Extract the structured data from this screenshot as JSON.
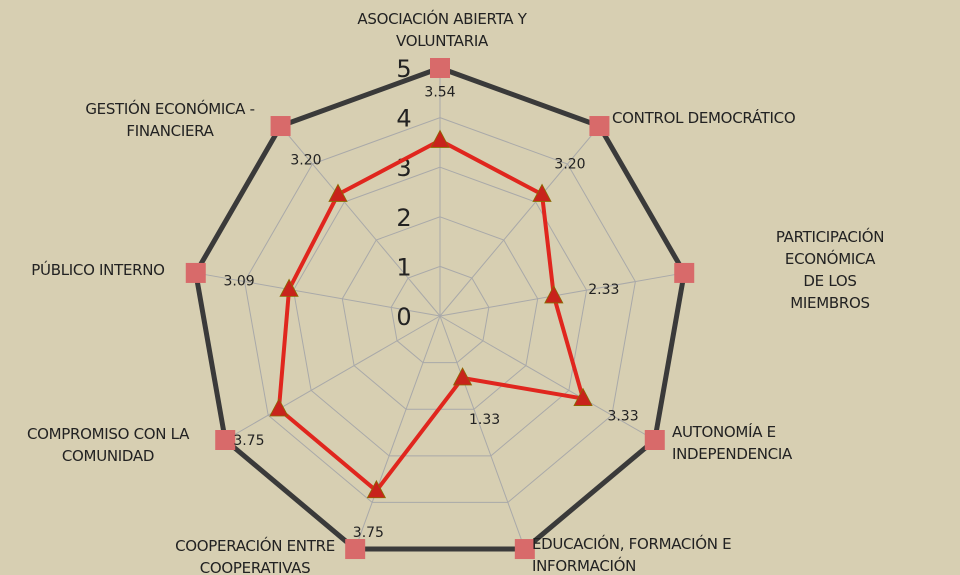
{
  "chart_data": {
    "type": "radar",
    "categories": [
      "ASOCIACIÓN ABIERTA Y\nVOLUNTARIA",
      "CONTROL DEMOCRÁTICO",
      "PARTICIPACIÓN ECONÓMICA\nDE LOS MIEMBROS",
      "AUTONOMÍA E\nINDEPENDENCIA",
      "EDUCACIÓN, FORMACIÓN E\nINFORMACIÓN",
      "COOPERACIÓN ENTRE\nCOOPERATIVAS",
      "COMPROMISO CON LA\nCOMUNIDAD",
      "PÚBLICO INTERNO",
      "GESTIÓN ECONÓMICA -\nFINANCIERA"
    ],
    "series": [
      {
        "color": "#3a3a3a",
        "marker_color": "#d86a6a",
        "marker": "square",
        "values": [
          5,
          5,
          5,
          5,
          5,
          5,
          5,
          5,
          5
        ]
      },
      {
        "color": "#e0261e",
        "marker_color": "#c8231b",
        "marker": "triangle",
        "values": [
          3.54,
          3.2,
          2.33,
          3.33,
          1.33,
          3.75,
          3.75,
          3.09,
          3.2
        ],
        "value_labels": [
          "3.54",
          "3.20",
          "2.33",
          "3.33",
          "1.33",
          "3.75",
          "3.75",
          "3.09",
          "3.20"
        ]
      }
    ],
    "ylim": [
      0,
      5
    ],
    "yticks": [
      0,
      1,
      2,
      3,
      4,
      5
    ],
    "grid": true
  }
}
